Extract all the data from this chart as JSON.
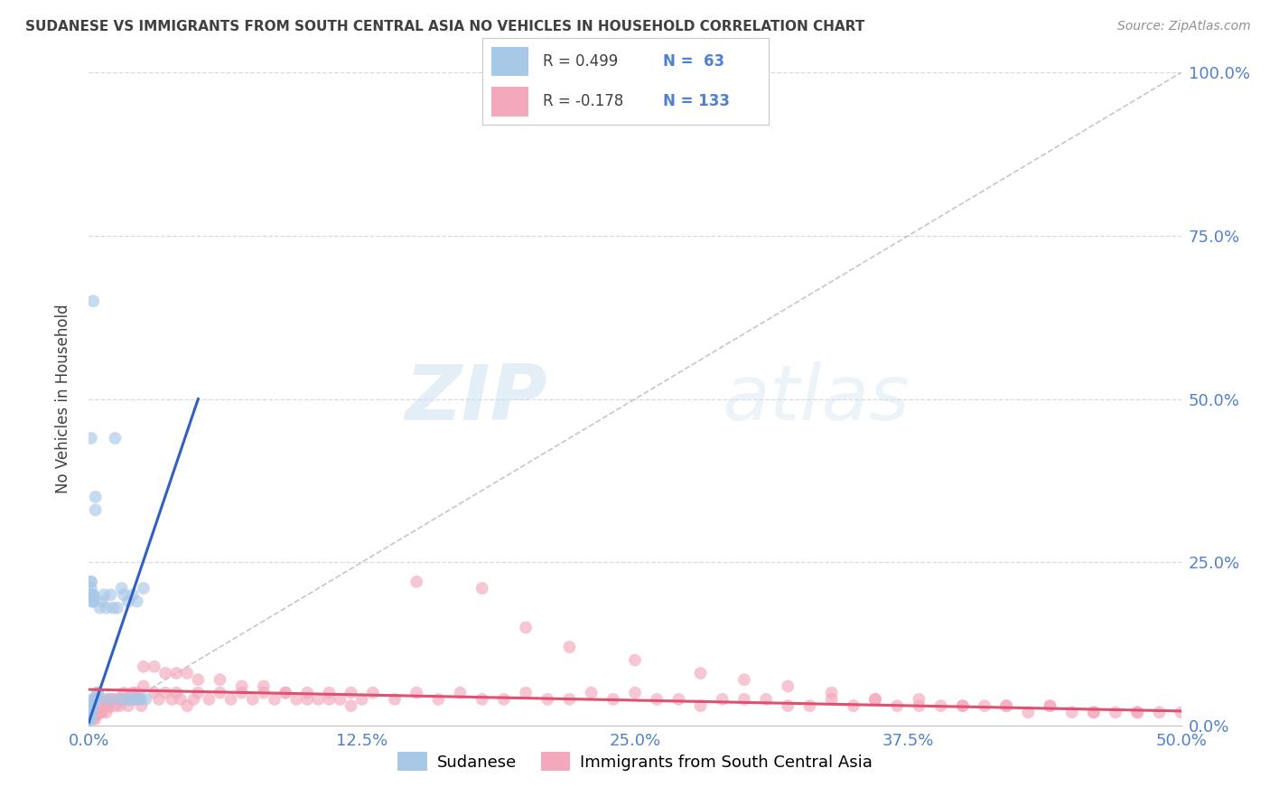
{
  "title": "SUDANESE VS IMMIGRANTS FROM SOUTH CENTRAL ASIA NO VEHICLES IN HOUSEHOLD CORRELATION CHART",
  "source": "Source: ZipAtlas.com",
  "ylabel_label": "No Vehicles in Household",
  "legend_blue_r": "R = 0.499",
  "legend_blue_n": "N =  63",
  "legend_pink_r": "R = -0.178",
  "legend_pink_n": "N = 133",
  "legend_bottom_blue": "Sudanese",
  "legend_bottom_pink": "Immigrants from South Central Asia",
  "blue_scatter_x": [
    0.0,
    0.0,
    0.0,
    0.0,
    0.0,
    0.0,
    0.0,
    0.0,
    0.0,
    0.0,
    0.001,
    0.001,
    0.001,
    0.001,
    0.001,
    0.001,
    0.001,
    0.001,
    0.001,
    0.001,
    0.001,
    0.001,
    0.001,
    0.001,
    0.001,
    0.002,
    0.002,
    0.002,
    0.002,
    0.002,
    0.002,
    0.003,
    0.003,
    0.003,
    0.004,
    0.004,
    0.005,
    0.006,
    0.007,
    0.008,
    0.009,
    0.01,
    0.011,
    0.012,
    0.013,
    0.014,
    0.015,
    0.016,
    0.017,
    0.018,
    0.019,
    0.02,
    0.021,
    0.022,
    0.023,
    0.024,
    0.025,
    0.026,
    0.003,
    0.004,
    0.002,
    0.001,
    0.002
  ],
  "blue_scatter_y": [
    0.02,
    0.03,
    0.02,
    0.01,
    0.02,
    0.01,
    0.02,
    0.01,
    0.01,
    0.01,
    0.02,
    0.03,
    0.02,
    0.02,
    0.03,
    0.02,
    0.02,
    0.01,
    0.02,
    0.22,
    0.2,
    0.19,
    0.21,
    0.2,
    0.22,
    0.2,
    0.19,
    0.2,
    0.19,
    0.04,
    0.03,
    0.04,
    0.33,
    0.35,
    0.04,
    0.05,
    0.18,
    0.19,
    0.2,
    0.18,
    0.04,
    0.2,
    0.18,
    0.44,
    0.18,
    0.04,
    0.21,
    0.2,
    0.04,
    0.19,
    0.04,
    0.2,
    0.04,
    0.19,
    0.04,
    0.04,
    0.21,
    0.04,
    0.04,
    0.05,
    0.65,
    0.44,
    0.04
  ],
  "pink_scatter_x": [
    0.0,
    0.0,
    0.001,
    0.001,
    0.001,
    0.001,
    0.001,
    0.002,
    0.002,
    0.002,
    0.002,
    0.003,
    0.003,
    0.003,
    0.004,
    0.004,
    0.004,
    0.005,
    0.005,
    0.006,
    0.006,
    0.007,
    0.007,
    0.008,
    0.008,
    0.009,
    0.01,
    0.011,
    0.012,
    0.013,
    0.014,
    0.015,
    0.016,
    0.017,
    0.018,
    0.019,
    0.02,
    0.021,
    0.022,
    0.023,
    0.024,
    0.025,
    0.03,
    0.032,
    0.035,
    0.038,
    0.04,
    0.042,
    0.045,
    0.048,
    0.05,
    0.055,
    0.06,
    0.065,
    0.07,
    0.075,
    0.08,
    0.085,
    0.09,
    0.095,
    0.1,
    0.105,
    0.11,
    0.115,
    0.12,
    0.125,
    0.13,
    0.14,
    0.15,
    0.16,
    0.17,
    0.18,
    0.19,
    0.2,
    0.21,
    0.22,
    0.23,
    0.24,
    0.25,
    0.26,
    0.27,
    0.28,
    0.29,
    0.3,
    0.31,
    0.32,
    0.33,
    0.34,
    0.35,
    0.36,
    0.37,
    0.38,
    0.39,
    0.4,
    0.41,
    0.42,
    0.43,
    0.44,
    0.45,
    0.46,
    0.47,
    0.48,
    0.49,
    0.5,
    0.15,
    0.18,
    0.2,
    0.22,
    0.25,
    0.28,
    0.3,
    0.32,
    0.34,
    0.36,
    0.38,
    0.4,
    0.42,
    0.44,
    0.46,
    0.48,
    0.025,
    0.03,
    0.035,
    0.04,
    0.045,
    0.05,
    0.06,
    0.07,
    0.08,
    0.09,
    0.1,
    0.11,
    0.12,
    0.003,
    0.004,
    0.005,
    0.006,
    0.007,
    0.008
  ],
  "pink_scatter_y": [
    0.02,
    0.01,
    0.02,
    0.01,
    0.02,
    0.03,
    0.01,
    0.02,
    0.03,
    0.01,
    0.02,
    0.03,
    0.02,
    0.01,
    0.02,
    0.03,
    0.02,
    0.03,
    0.02,
    0.03,
    0.02,
    0.03,
    0.04,
    0.03,
    0.02,
    0.03,
    0.04,
    0.04,
    0.03,
    0.04,
    0.03,
    0.04,
    0.05,
    0.04,
    0.03,
    0.04,
    0.05,
    0.04,
    0.05,
    0.04,
    0.03,
    0.06,
    0.05,
    0.04,
    0.05,
    0.04,
    0.05,
    0.04,
    0.03,
    0.04,
    0.05,
    0.04,
    0.05,
    0.04,
    0.05,
    0.04,
    0.05,
    0.04,
    0.05,
    0.04,
    0.05,
    0.04,
    0.05,
    0.04,
    0.05,
    0.04,
    0.05,
    0.04,
    0.05,
    0.04,
    0.05,
    0.04,
    0.04,
    0.05,
    0.04,
    0.04,
    0.05,
    0.04,
    0.05,
    0.04,
    0.04,
    0.03,
    0.04,
    0.04,
    0.04,
    0.03,
    0.03,
    0.04,
    0.03,
    0.04,
    0.03,
    0.03,
    0.03,
    0.03,
    0.03,
    0.03,
    0.02,
    0.03,
    0.02,
    0.02,
    0.02,
    0.02,
    0.02,
    0.02,
    0.22,
    0.21,
    0.15,
    0.12,
    0.1,
    0.08,
    0.07,
    0.06,
    0.05,
    0.04,
    0.04,
    0.03,
    0.03,
    0.03,
    0.02,
    0.02,
    0.09,
    0.09,
    0.08,
    0.08,
    0.08,
    0.07,
    0.07,
    0.06,
    0.06,
    0.05,
    0.04,
    0.04,
    0.03,
    0.04,
    0.03,
    0.04,
    0.03,
    0.03,
    0.03
  ],
  "blue_line_x": [
    0.0,
    0.05
  ],
  "blue_line_y": [
    0.005,
    0.5
  ],
  "pink_line_x": [
    0.0,
    0.5
  ],
  "pink_line_y": [
    0.055,
    0.022
  ],
  "diag_line_x": [
    0.0,
    0.5
  ],
  "diag_line_y": [
    0.0,
    1.0
  ],
  "xlim": [
    0.0,
    0.5
  ],
  "ylim": [
    0.0,
    1.0
  ],
  "xticks": [
    0.0,
    0.125,
    0.25,
    0.375,
    0.5
  ],
  "yticks": [
    0.0,
    0.25,
    0.5,
    0.75,
    1.0
  ],
  "xtick_labels": [
    "0.0%",
    "12.5%",
    "25.0%",
    "37.5%",
    "50.0%"
  ],
  "ytick_labels": [
    "0.0%",
    "25.0%",
    "50.0%",
    "75.0%",
    "100.0%"
  ],
  "blue_color": "#a8c8e8",
  "pink_color": "#f4a8bc",
  "blue_line_color": "#3060c0",
  "pink_line_color": "#e05070",
  "diag_color": "#b8b8b8",
  "watermark_zip": "ZIP",
  "watermark_atlas": "atlas",
  "background_color": "#ffffff",
  "tick_label_color": "#5080d0",
  "grid_color": "#d8d8e8",
  "title_color": "#404040",
  "ylabel_color": "#404040",
  "source_color": "#909090"
}
